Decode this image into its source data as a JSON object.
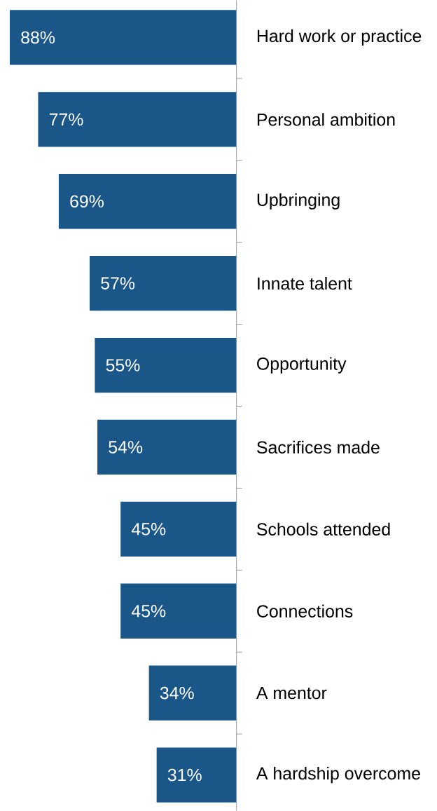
{
  "chart_data": {
    "type": "bar",
    "orientation": "horizontal",
    "categories": [
      "Hard work or practice",
      "Personal ambition",
      "Upbringing",
      "Innate talent",
      "Opportunity",
      "Sacrifices made",
      "Schools attended",
      "Connections",
      "A mentor",
      "A hardship overcome"
    ],
    "values": [
      88,
      77,
      69,
      57,
      55,
      54,
      45,
      45,
      34,
      31
    ],
    "value_labels": [
      "88%",
      "77%",
      "69%",
      "57%",
      "55%",
      "54%",
      "45%",
      "45%",
      "34%",
      "31%"
    ],
    "color": "#1a5687",
    "tick_labels": "y"
  }
}
